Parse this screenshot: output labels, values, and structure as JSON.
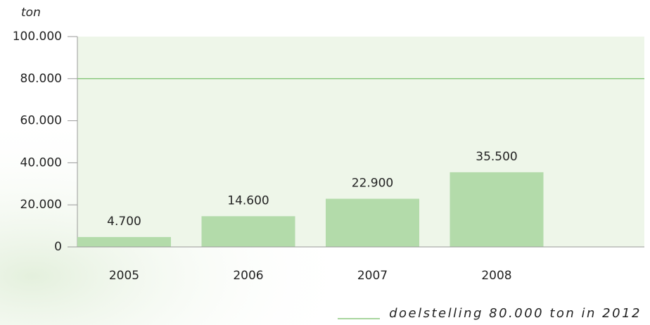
{
  "chart_data": {
    "type": "bar",
    "y_axis_label": "ton",
    "categories": [
      "2005",
      "2006",
      "2007",
      "2008"
    ],
    "values": [
      4700,
      14600,
      22900,
      35500
    ],
    "value_labels": [
      "4.700",
      "14.600",
      "22.900",
      "35.500"
    ],
    "color": "#b3dbaa",
    "ylim": [
      0,
      100000
    ],
    "yticks": [
      0,
      {
        "value": 20000,
        "label": "20.000"
      },
      {
        "value": 40000,
        "label": "40.000"
      },
      {
        "value": 60000,
        "label": "60.000"
      },
      {
        "value": 80000,
        "label": "80.000"
      },
      {
        "value": 100000,
        "label": "100.000"
      }
    ],
    "target": {
      "value": 80000,
      "label": "doelstelling 80.000 ton in 2012",
      "color": "#8cc97f"
    }
  }
}
